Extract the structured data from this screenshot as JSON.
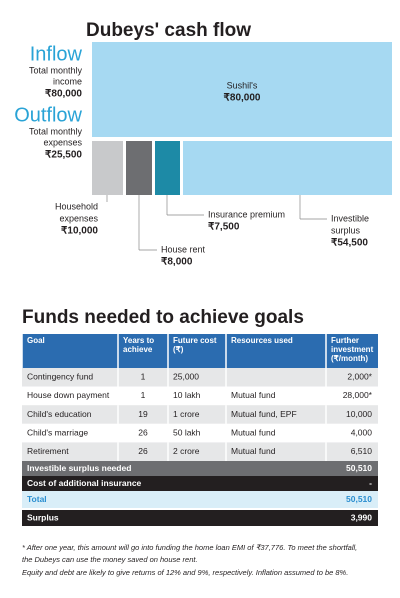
{
  "cashflow": {
    "title": "Dubeys' cash flow",
    "inflow": {
      "heading": "Inflow",
      "label": [
        "Total monthly",
        "income"
      ],
      "amount": "₹80,000",
      "box_label": "Sushil's",
      "box_amount": "₹80,000"
    },
    "outflow": {
      "heading": "Outflow",
      "label": [
        "Total monthly",
        "expenses"
      ],
      "amount": "₹25,500"
    },
    "parts": [
      {
        "label": [
          "Household",
          "expenses"
        ],
        "amount": "₹10,000"
      },
      {
        "label": [
          "House rent"
        ],
        "amount": "₹8,000"
      },
      {
        "label": [
          "Insurance premium"
        ],
        "amount": "₹7,500"
      },
      {
        "label": [
          "Investible",
          "surplus"
        ],
        "amount": "₹54,500"
      }
    ]
  },
  "table": {
    "title": "Funds needed to achieve goals",
    "columns": [
      [
        "Goal"
      ],
      [
        "Years to",
        "achieve"
      ],
      [
        "Future cost",
        "(₹)"
      ],
      [
        "Resources used"
      ],
      [
        "Further",
        "investment",
        "(₹/month)"
      ]
    ],
    "rows": [
      [
        "Contingency fund",
        "1",
        "25,000",
        "",
        "2,000*"
      ],
      [
        "House down payment",
        "1",
        "10 lakh",
        "Mutual fund",
        "28,000*"
      ],
      [
        "Child's education",
        "19",
        "1 crore",
        "Mutual fund, EPF",
        "10,000"
      ],
      [
        "Child's marriage",
        "26",
        "50 lakh",
        "Mutual fund",
        "4,000"
      ],
      [
        "Retirement",
        "26",
        "2 crore",
        "Mutual fund",
        "6,510"
      ]
    ],
    "summary": [
      [
        "Investible surplus needed",
        "50,510"
      ],
      [
        "Cost of additional insurance",
        "-"
      ],
      [
        "Total",
        "50,510"
      ],
      [
        "Surplus",
        "3,990"
      ]
    ]
  },
  "footnotes": [
    "* After one year, this amount will go into funding the home loan EMI of ₹37,776. To meet the shortfall,",
    "the Dubeys can use the money saved on house rent.",
    "Equity and debt are likely to give returns of 12% and 9%, respectively. Inflation assumed to be 8%."
  ]
}
